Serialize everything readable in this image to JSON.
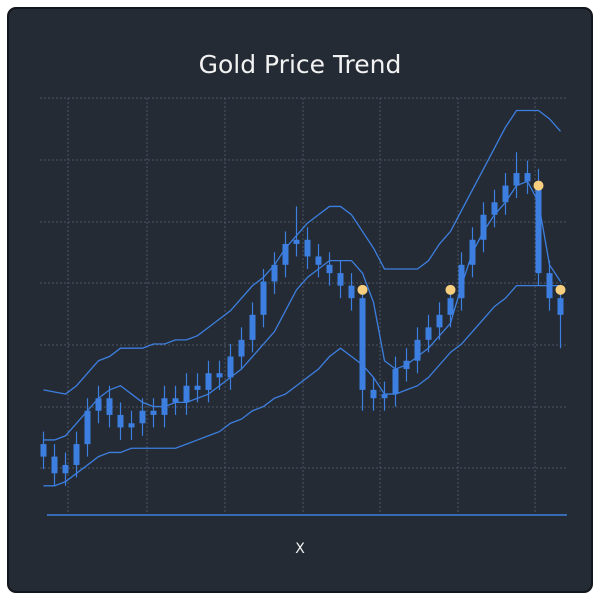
{
  "chart_data": {
    "type": "candlestick",
    "title": "Gold Price Trend",
    "x_label": "X",
    "color": "#3d7fe0",
    "band_color": "#3d7fe0",
    "signal_color": "#f7cf7e",
    "ylim": [
      0,
      100
    ],
    "open": [
      17,
      14,
      10,
      12,
      17,
      25,
      28,
      24,
      21,
      22,
      25,
      24,
      28,
      27,
      31,
      30,
      34,
      33,
      38,
      42,
      48,
      56,
      60,
      65,
      66,
      62,
      60,
      58,
      55,
      52,
      30,
      28,
      29,
      35,
      37,
      42,
      45,
      48,
      52,
      60,
      66,
      72,
      75,
      79,
      82,
      80,
      58,
      52
    ],
    "close": [
      14,
      10,
      12,
      17,
      25,
      28,
      24,
      21,
      22,
      25,
      24,
      28,
      27,
      31,
      30,
      34,
      33,
      38,
      42,
      48,
      56,
      60,
      65,
      66,
      62,
      60,
      58,
      55,
      52,
      30,
      28,
      29,
      35,
      37,
      42,
      45,
      48,
      52,
      60,
      66,
      72,
      75,
      79,
      82,
      80,
      58,
      52,
      48
    ],
    "high": [
      20,
      17,
      15,
      20,
      28,
      31,
      31,
      27,
      25,
      28,
      28,
      31,
      31,
      34,
      34,
      37,
      37,
      41,
      45,
      51,
      59,
      63,
      68,
      74,
      69,
      65,
      63,
      61,
      58,
      55,
      33,
      32,
      38,
      40,
      45,
      48,
      51,
      55,
      63,
      69,
      75,
      78,
      82,
      87,
      85,
      83,
      61,
      55
    ],
    "low": [
      11,
      7,
      7,
      9,
      14,
      22,
      21,
      18,
      18,
      19,
      21,
      21,
      24,
      24,
      27,
      27,
      30,
      30,
      35,
      39,
      45,
      53,
      57,
      62,
      59,
      57,
      55,
      52,
      49,
      25,
      25,
      25,
      26,
      32,
      34,
      39,
      42,
      45,
      49,
      57,
      63,
      69,
      72,
      76,
      77,
      55,
      49,
      40
    ],
    "upper": [
      30,
      29.5,
      29,
      31,
      34,
      37,
      38,
      40,
      40,
      40,
      41,
      41,
      42,
      42,
      43,
      45,
      47,
      49,
      52,
      55,
      57,
      60,
      64,
      67,
      70,
      72,
      74,
      74,
      72,
      68,
      64,
      59,
      59,
      59,
      59,
      61,
      65,
      68,
      73,
      78,
      83,
      88,
      93,
      97,
      97,
      97,
      95,
      92
    ],
    "middle": [
      18,
      18,
      19,
      22,
      25,
      28,
      30,
      31,
      29,
      27,
      26,
      26,
      27,
      27,
      28,
      29,
      31,
      33,
      35,
      38,
      41,
      44,
      49,
      54,
      57,
      59,
      61,
      61,
      61,
      58,
      51,
      37,
      35,
      36,
      38,
      40,
      43,
      46,
      55,
      63,
      68,
      72,
      75,
      79,
      80,
      75,
      60,
      56
    ],
    "lower": [
      7,
      7,
      8,
      10,
      12,
      14,
      15,
      15,
      16,
      16,
      16,
      16,
      16,
      17,
      18,
      19,
      20,
      22,
      23,
      25,
      26,
      28,
      29,
      31,
      33,
      35,
      38,
      40,
      38,
      36,
      33,
      29,
      29,
      30,
      31,
      33,
      36,
      39,
      41,
      44,
      47,
      50,
      52,
      55,
      55,
      55,
      55,
      55
    ],
    "signals": [
      {
        "index": 29,
        "value": 54
      },
      {
        "index": 37,
        "value": 54
      },
      {
        "index": 45,
        "value": 79
      },
      {
        "index": 47,
        "value": 54
      }
    ]
  }
}
